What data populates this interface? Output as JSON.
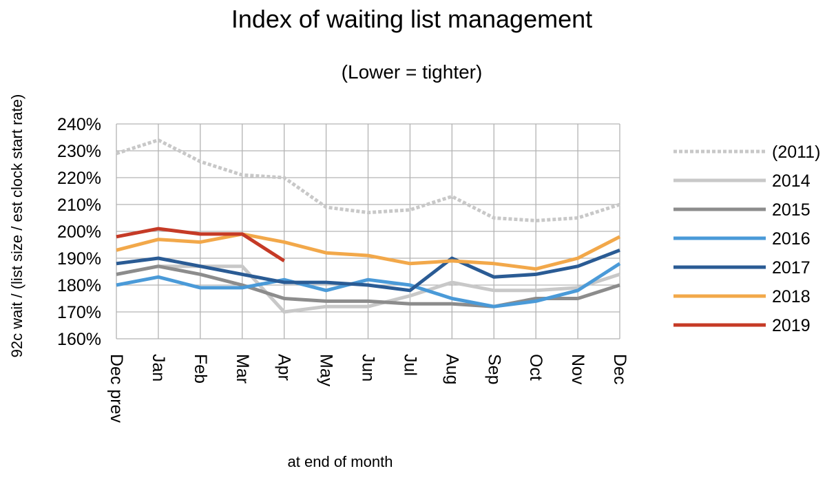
{
  "chart_data": {
    "type": "line",
    "title": "Index of waiting list management",
    "subtitle": "(Lower = tighter)",
    "ylabel": "92c wait / (list size / est clock start rate)",
    "xlabel": "at end of month",
    "categories": [
      "Dec prev",
      "Jan",
      "Feb",
      "Mar",
      "Apr",
      "May",
      "Jun",
      "Jul",
      "Aug",
      "Sep",
      "Oct",
      "Nov",
      "Dec"
    ],
    "ylim": [
      160,
      240
    ],
    "yticks": [
      160,
      170,
      180,
      190,
      200,
      210,
      220,
      230,
      240
    ],
    "ytick_labels": [
      "160%",
      "170%",
      "180%",
      "190%",
      "200%",
      "210%",
      "220%",
      "230%",
      "240%"
    ],
    "grid": true,
    "legend_position": "right",
    "series": [
      {
        "name": "(2011)",
        "color": "#c8c8c8",
        "dashed": true,
        "values": [
          229,
          234,
          226,
          221,
          220,
          209,
          207,
          208,
          213,
          205,
          204,
          205,
          210
        ]
      },
      {
        "name": "2014",
        "color": "#c8c8c8",
        "dashed": false,
        "values": [
          184,
          187,
          187,
          187,
          170,
          172,
          172,
          176,
          181,
          178,
          178,
          179,
          184
        ]
      },
      {
        "name": "2015",
        "color": "#8c8c8c",
        "dashed": false,
        "values": [
          184,
          187,
          184,
          180,
          175,
          174,
          174,
          173,
          173,
          172,
          175,
          175,
          180
        ]
      },
      {
        "name": "2016",
        "color": "#4a9ad8",
        "dashed": false,
        "values": [
          180,
          183,
          179,
          179,
          182,
          178,
          182,
          180,
          175,
          172,
          174,
          178,
          188
        ]
      },
      {
        "name": "2017",
        "color": "#2a5b94",
        "dashed": false,
        "values": [
          188,
          190,
          187,
          184,
          181,
          181,
          180,
          178,
          190,
          183,
          184,
          187,
          193
        ]
      },
      {
        "name": "2018",
        "color": "#f2a84a",
        "dashed": false,
        "values": [
          193,
          197,
          196,
          199,
          196,
          192,
          191,
          188,
          189,
          188,
          186,
          190,
          198
        ]
      },
      {
        "name": "2019",
        "color": "#c53a26",
        "dashed": false,
        "values": [
          198,
          201,
          199,
          199,
          189,
          null,
          null,
          null,
          null,
          null,
          null,
          null,
          null
        ]
      }
    ]
  }
}
